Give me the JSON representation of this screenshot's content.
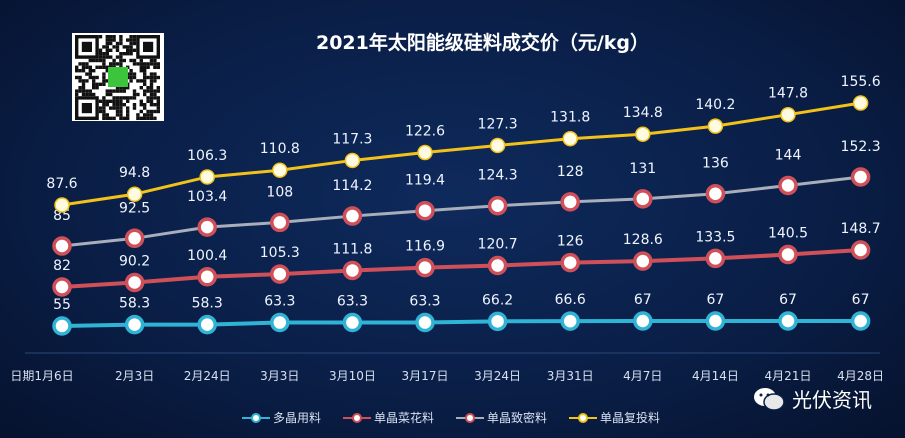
{
  "chart_data": {
    "type": "line",
    "title": "2021年太阳能级硅料成交价（元/kg）",
    "categories": [
      "日期1月6日",
      "2月3日",
      "2月24日",
      "3月3日",
      "3月10日",
      "3月17日",
      "3月24日",
      "3月31日",
      "4月7日",
      "4月14日",
      "4月21日",
      "4月28日"
    ],
    "series": [
      {
        "name": "多晶用料",
        "color": "#2fb4d6",
        "values": [
          55,
          58.3,
          58.3,
          63.3,
          63.3,
          63.3,
          66.2,
          66.6,
          67,
          67,
          67,
          67
        ]
      },
      {
        "name": "单晶菜花料",
        "color": "#d0505a",
        "values": [
          82,
          90.2,
          100.4,
          105.3,
          111.8,
          116.9,
          120.7,
          126,
          128.6,
          133.5,
          140.5,
          148.7
        ]
      },
      {
        "name": "单晶致密料",
        "color": "#a9aebb",
        "values": [
          85,
          92.5,
          103.4,
          108,
          114.2,
          119.4,
          124.3,
          128,
          131,
          136,
          144,
          152.3
        ]
      },
      {
        "name": "单晶复投料",
        "color": "#f2c21a",
        "values": [
          87.6,
          94.8,
          106.3,
          110.8,
          117.3,
          122.6,
          127.3,
          131.8,
          134.8,
          140.2,
          147.8,
          155.6
        ]
      }
    ],
    "data_labels": true,
    "grid": false,
    "legend_position": "bottom"
  },
  "watermark": {
    "text": "光伏资讯",
    "icon": "wechat-icon"
  },
  "qr_logo_text": "光伏资讯"
}
